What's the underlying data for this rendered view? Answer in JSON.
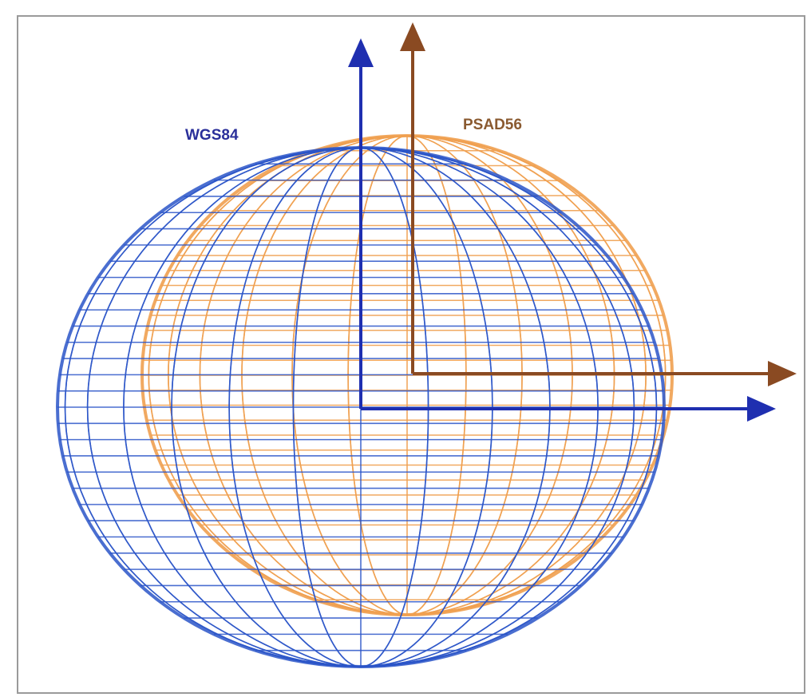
{
  "labels": {
    "wgs84": "WGS84",
    "psad56": "PSAD56"
  }
}
